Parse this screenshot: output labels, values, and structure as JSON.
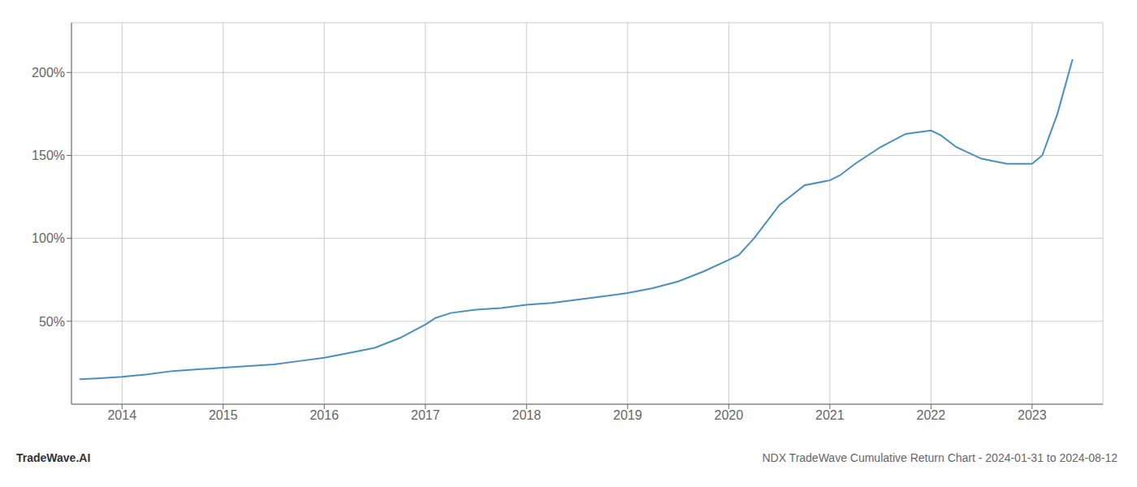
{
  "chart_data": {
    "type": "line",
    "title": "NDX TradeWave Cumulative Return Chart - 2024-01-31 to 2024-08-12",
    "annotations": [
      "TradeWave.AI"
    ],
    "x": [
      2013.58,
      2013.75,
      2014.0,
      2014.25,
      2014.5,
      2014.75,
      2015.0,
      2015.25,
      2015.5,
      2015.75,
      2016.0,
      2016.25,
      2016.5,
      2016.75,
      2017.0,
      2017.1,
      2017.25,
      2017.5,
      2017.75,
      2018.0,
      2018.25,
      2018.5,
      2018.75,
      2019.0,
      2019.25,
      2019.5,
      2019.75,
      2020.0,
      2020.1,
      2020.25,
      2020.5,
      2020.75,
      2021.0,
      2021.1,
      2021.25,
      2021.5,
      2021.75,
      2022.0,
      2022.1,
      2022.25,
      2022.5,
      2022.75,
      2023.0,
      2023.1,
      2023.25,
      2023.4
    ],
    "values": [
      15,
      15.5,
      16.5,
      18,
      20,
      21,
      22,
      23,
      24,
      26,
      28,
      31,
      34,
      40,
      48,
      52,
      55,
      57,
      58,
      60,
      61,
      63,
      65,
      67,
      70,
      74,
      80,
      87,
      90,
      100,
      120,
      132,
      135,
      138,
      145,
      155,
      163,
      165,
      162,
      155,
      148,
      145,
      145,
      150,
      175,
      208
    ],
    "color": "#4a8fbe",
    "xlim": [
      2013.5,
      2023.7
    ],
    "ylim": [
      0,
      230
    ],
    "xticks": [
      2014,
      2015,
      2016,
      2017,
      2018,
      2019,
      2020,
      2021,
      2022,
      2023
    ],
    "yticks": [
      {
        "value": 50,
        "label": "50%"
      },
      {
        "value": 100,
        "label": "100%"
      },
      {
        "value": 150,
        "label": "150%"
      },
      {
        "value": 200,
        "label": "200%"
      }
    ],
    "grid": true
  }
}
